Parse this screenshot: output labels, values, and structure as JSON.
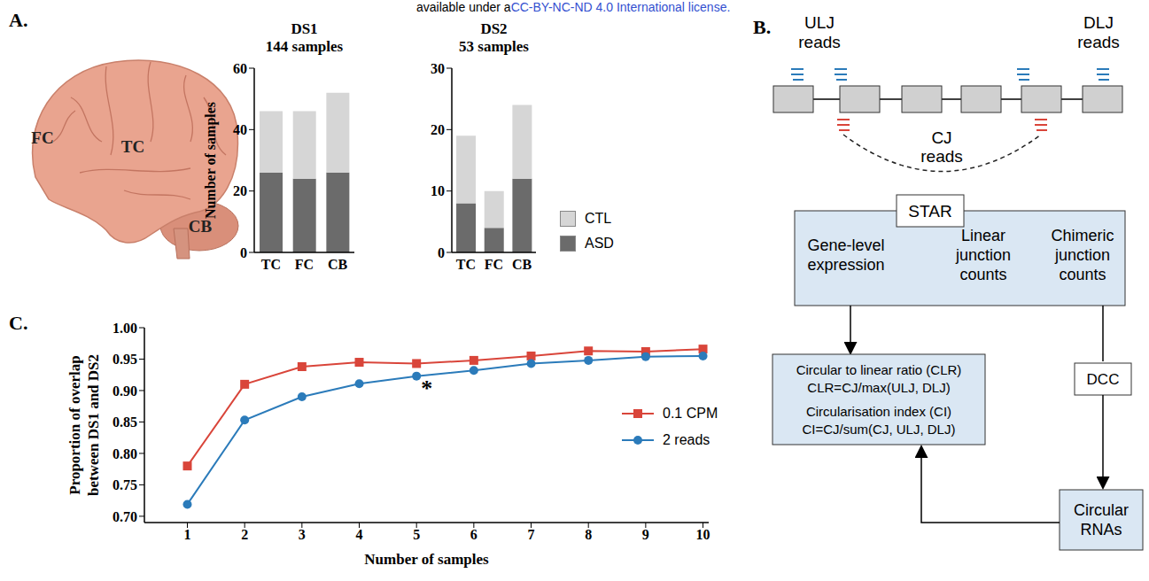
{
  "header": {
    "text": "available under a",
    "link": "CC-BY-NC-ND 4.0 International license."
  },
  "chart_data": [
    {
      "type": "bar",
      "title": "DS1",
      "subtitle": "144 samples",
      "categories": [
        "TC",
        "FC",
        "CB"
      ],
      "stacked": true,
      "y_label": "Number of samples",
      "ylim": [
        0,
        60
      ],
      "yticks": [
        0,
        20,
        40,
        60
      ],
      "series": [
        {
          "name": "ASD",
          "color": "#6b6b6b",
          "values": [
            26,
            24,
            26
          ]
        },
        {
          "name": "CTL",
          "color": "#d6d6d6",
          "values": [
            20,
            22,
            26
          ]
        }
      ]
    },
    {
      "type": "bar",
      "title": "DS2",
      "subtitle": "53 samples",
      "categories": [
        "TC",
        "FC",
        "CB"
      ],
      "stacked": true,
      "ylim": [
        0,
        30
      ],
      "yticks": [
        0,
        10,
        20,
        30
      ],
      "legend": "right",
      "series": [
        {
          "name": "ASD",
          "color": "#6b6b6b",
          "values": [
            8,
            4,
            12
          ]
        },
        {
          "name": "CTL",
          "color": "#d6d6d6",
          "values": [
            11,
            6,
            12
          ]
        }
      ]
    },
    {
      "type": "line",
      "x_label": "Number of samples",
      "y_label": [
        "Proportion of overlap",
        "between DS1 and DS2"
      ],
      "x": [
        1,
        2,
        3,
        4,
        5,
        6,
        7,
        8,
        9,
        10
      ],
      "xlim": [
        0.25,
        10.1
      ],
      "xticks": [
        1,
        2,
        3,
        4,
        5,
        6,
        7,
        8,
        9,
        10
      ],
      "ylim": [
        0.69,
        1.0
      ],
      "yticks": [
        {
          "value": 0.7,
          "label": "0.70"
        },
        {
          "value": 0.75,
          "label": "0.75"
        },
        {
          "value": 0.8,
          "label": "0.80"
        },
        {
          "value": 0.85,
          "label": "0.85"
        },
        {
          "value": 0.9,
          "label": "0.90"
        },
        {
          "value": 0.95,
          "label": "0.95"
        },
        {
          "value": 1.0,
          "label": "1.00"
        }
      ],
      "legend": "right",
      "annotations": [
        {
          "text": "*",
          "x": 5,
          "y": 0.905
        }
      ],
      "series": [
        {
          "name": "0.1 CPM",
          "color": "#d9453a",
          "marker": "square",
          "values": [
            0.78,
            0.91,
            0.938,
            0.945,
            0.943,
            0.948,
            0.955,
            0.963,
            0.962,
            0.966
          ]
        },
        {
          "name": "2 reads",
          "color": "#2b7bba",
          "marker": "circle",
          "values": [
            0.719,
            0.853,
            0.89,
            0.911,
            0.923,
            0.932,
            0.943,
            0.948,
            0.954,
            0.955
          ]
        }
      ]
    }
  ],
  "panels": {
    "A": {
      "letter": "A.",
      "brain_labels": [
        "FC",
        "TC",
        "CB"
      ]
    },
    "B": {
      "letter": "B.",
      "ulj": [
        "ULJ",
        "reads"
      ],
      "dlj": [
        "DLJ",
        "reads"
      ],
      "cj": [
        "CJ",
        "reads"
      ],
      "star": "STAR",
      "star_columns": [
        [
          "Gene-level",
          "expression"
        ],
        [
          "Linear",
          "junction",
          "counts"
        ],
        [
          "Chimeric",
          "junction",
          "counts"
        ]
      ],
      "ratio_box": [
        [
          "Circular to linear ratio (CLR)",
          "CLR=CJ/max(ULJ, DLJ)"
        ],
        [
          "Circularisation index (CI)",
          "CI=CJ/sum(CJ, ULJ, DLJ)"
        ]
      ],
      "dcc": "DCC",
      "circular_rnas": [
        "Circular",
        "RNAs"
      ]
    },
    "C": {
      "letter": "C."
    }
  }
}
